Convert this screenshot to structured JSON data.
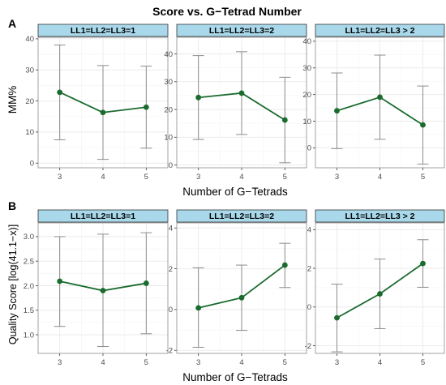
{
  "figure": {
    "title": "Score vs. G−Tetrad Number",
    "line_color": "#1a6b2e",
    "point_color": "#1a6b2e",
    "errorbar_color": "#8c8c8c",
    "strip_fill": "#a8d8ea",
    "panel_border": "#8c8c8c",
    "grid_color": "#ebebeb"
  },
  "chart_data": [
    {
      "panel": "A",
      "type": "line",
      "ylabel": "MM%",
      "xlabel": "Number of G−Tetrads",
      "facets": [
        {
          "strip": "LL1=LL2=LL3=1",
          "x": [
            3,
            4,
            5
          ],
          "y": [
            22.8,
            16.3,
            18.0
          ],
          "ymin": [
            7.5,
            1.2,
            4.8
          ],
          "ymax": [
            38.0,
            31.4,
            31.2
          ],
          "ylim": [
            -1.5,
            40.5
          ],
          "yticks": [
            0,
            10,
            20,
            30,
            40
          ]
        },
        {
          "strip": "LL1=LL2=LL3=2",
          "x": [
            3,
            4,
            5
          ],
          "y": [
            24.3,
            25.9,
            16.2
          ],
          "ymin": [
            9.2,
            11.0,
            0.8
          ],
          "ymax": [
            39.4,
            40.8,
            31.6
          ],
          "ylim": [
            -1.0,
            46.0
          ],
          "yticks": [
            0,
            10,
            20,
            30,
            40
          ]
        },
        {
          "strip": "LL1=LL2=LL3 > 2",
          "x": [
            3,
            4,
            5
          ],
          "y": [
            13.9,
            19.0,
            8.6
          ],
          "ymin": [
            -0.3,
            3.2,
            -6.1
          ],
          "ymax": [
            28.1,
            34.8,
            23.2
          ],
          "ylim": [
            -7.5,
            41.5
          ],
          "yticks": [
            0,
            10,
            20,
            30,
            40
          ]
        }
      ]
    },
    {
      "panel": "B",
      "type": "line",
      "ylabel": "Quality Score [log(41.1−x)]",
      "xlabel": "Number of G−Tetrads",
      "facets": [
        {
          "strip": "LL1=LL2=LL3=1",
          "x": [
            3,
            4,
            5
          ],
          "y": [
            2.09,
            1.9,
            2.05
          ],
          "ymin": [
            1.17,
            0.76,
            1.02
          ],
          "ymax": [
            3.0,
            3.05,
            3.08
          ],
          "ylim": [
            0.62,
            3.28
          ],
          "yticks": [
            1.0,
            1.5,
            2.0,
            2.5,
            3.0
          ]
        },
        {
          "strip": "LL1=LL2=LL3=2",
          "x": [
            3,
            4,
            5
          ],
          "y": [
            0.08,
            0.58,
            2.18
          ],
          "ymin": [
            -1.85,
            -1.02,
            1.08
          ],
          "ymax": [
            2.05,
            2.18,
            3.25
          ],
          "ylim": [
            -2.15,
            4.25
          ],
          "yticks": [
            -2,
            0,
            2,
            4
          ]
        },
        {
          "strip": "LL1=LL2=LL3 > 2",
          "x": [
            3,
            4,
            5
          ],
          "y": [
            -0.56,
            0.68,
            2.25
          ],
          "ymin": [
            -2.32,
            -1.12,
            1.02
          ],
          "ymax": [
            1.18,
            2.48,
            3.48
          ],
          "ylim": [
            -2.4,
            4.35
          ],
          "yticks": [
            -2,
            0,
            2,
            4
          ]
        }
      ]
    }
  ]
}
